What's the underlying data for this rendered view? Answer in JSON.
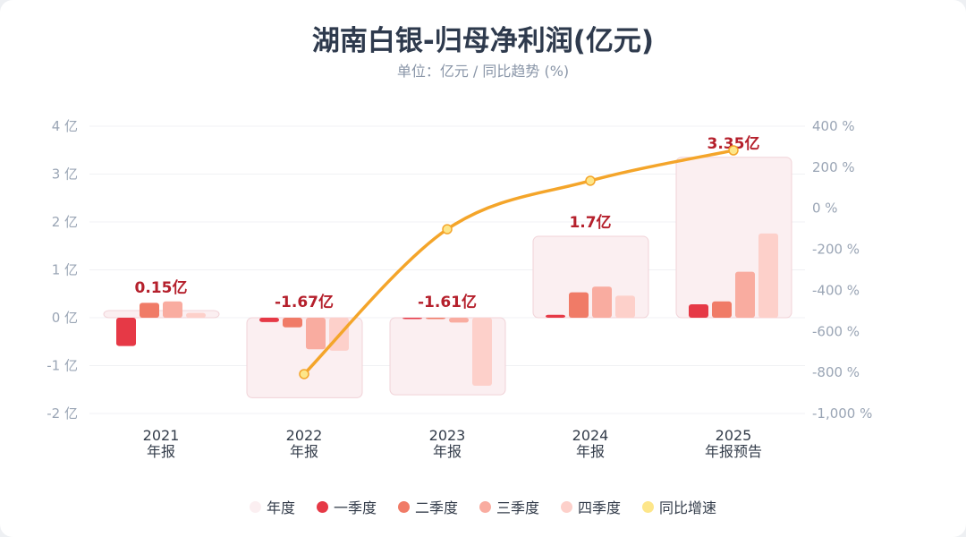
{
  "title": "湖南白银-归母净利润(亿元)",
  "subtitle": "单位：亿元 / 同比趋势 (%)",
  "colors": {
    "annual": "#fbeff1",
    "annual_border": "#f1d3d8",
    "q1": "#e63946",
    "q2": "#f07b67",
    "q3": "#f9aca0",
    "q4": "#fdd0ca",
    "yoy": "#f4a52a",
    "yoy_dot": "#fde68a",
    "label": "#b5202c"
  },
  "chart_data": {
    "type": "bar",
    "title": "湖南白银-归母净利润(亿元)",
    "categories": [
      [
        "2021",
        "年报"
      ],
      [
        "2022",
        "年报"
      ],
      [
        "2023",
        "年报"
      ],
      [
        "2024",
        "年报"
      ],
      [
        "2025",
        "年报预告"
      ]
    ],
    "annual": [
      0.15,
      -1.67,
      -1.61,
      1.7,
      3.35
    ],
    "annual_labels": [
      "0.15亿",
      "-1.67亿",
      "-1.61亿",
      "1.7亿",
      "3.35亿"
    ],
    "series": [
      {
        "name": "一季度",
        "values": [
          -0.59,
          -0.09,
          -0.02,
          0.06,
          0.28
        ]
      },
      {
        "name": "二季度",
        "values": [
          0.31,
          -0.2,
          -0.01,
          0.53,
          0.34
        ]
      },
      {
        "name": "三季度",
        "values": [
          0.34,
          -0.66,
          -0.1,
          0.65,
          0.96
        ]
      },
      {
        "name": "四季度",
        "values": [
          0.1,
          -0.69,
          -1.42,
          0.46,
          1.76
        ]
      }
    ],
    "yoy": {
      "name": "同比增速",
      "values": [
        null,
        -808,
        -102,
        134,
        282
      ]
    },
    "ylim": [
      -2,
      4
    ],
    "yticks": [
      "4 亿",
      "3 亿",
      "2 亿",
      "1 亿",
      "0 亿",
      "-1 亿",
      "-2 亿"
    ],
    "y2lim": [
      -1000,
      400
    ],
    "y2ticks": [
      "400 %",
      "200 %",
      "0 %",
      "-200 %",
      "-400 %",
      "-600 %",
      "-800 %",
      "-1,000 %"
    ],
    "grid": true,
    "legend_position": "bottom"
  },
  "legend": [
    "年度",
    "一季度",
    "二季度",
    "三季度",
    "四季度",
    "同比增速"
  ]
}
